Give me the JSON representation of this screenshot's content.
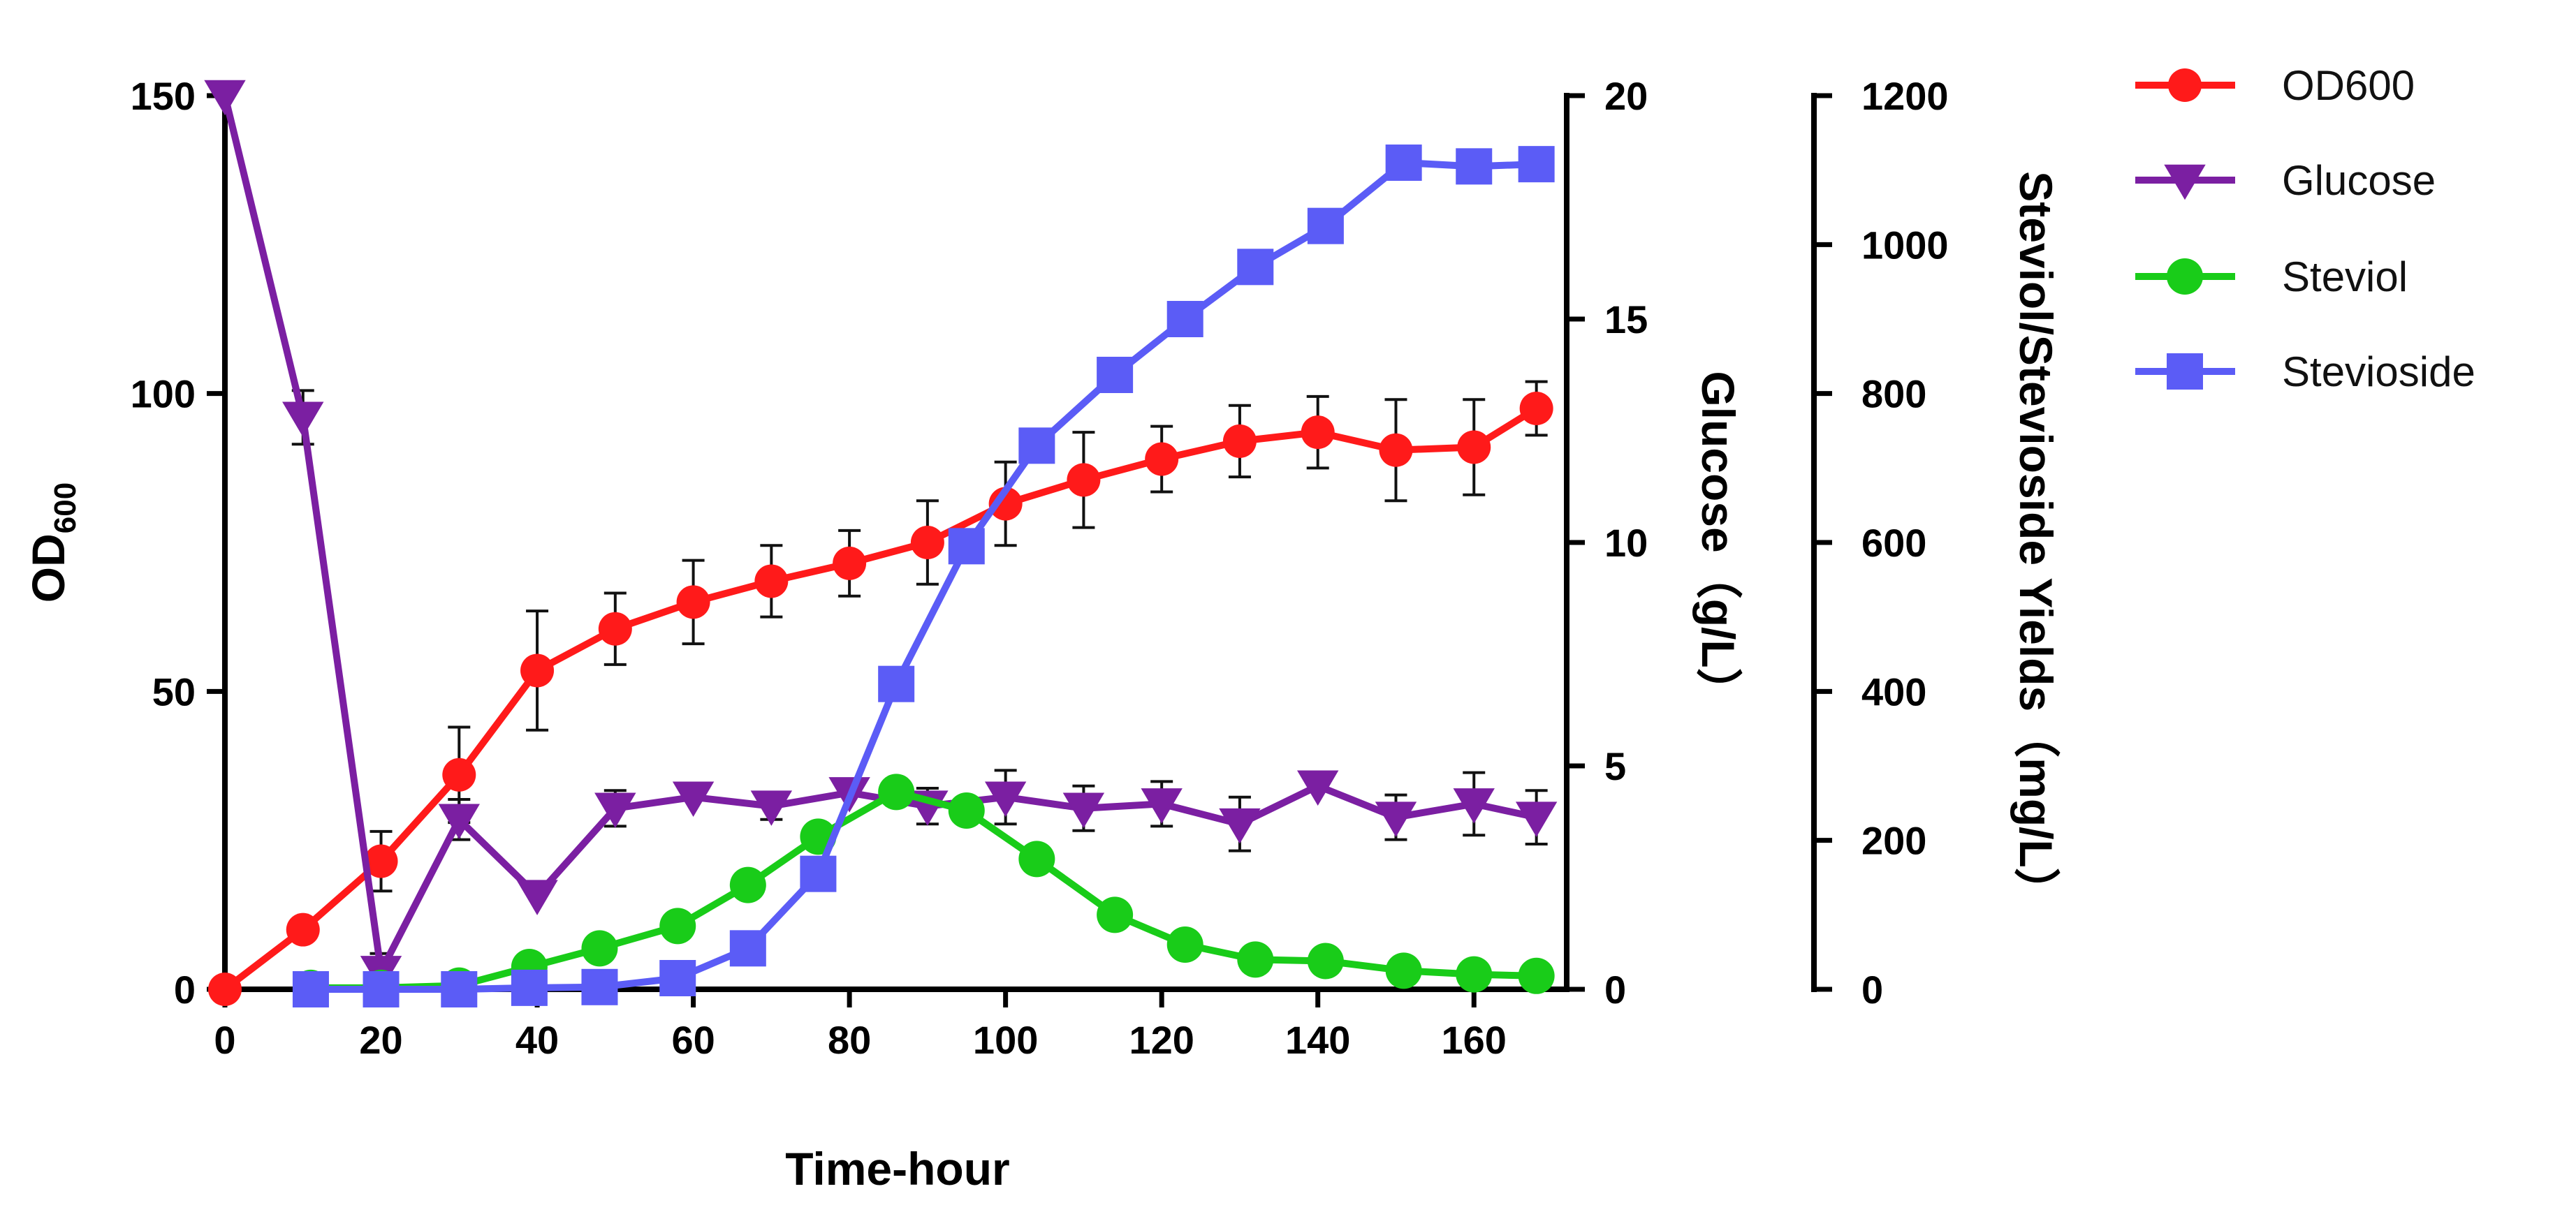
{
  "chart_data": {
    "type": "line",
    "xlabel": "Time-hour",
    "xlim": [
      0,
      170
    ],
    "xticks": [
      0,
      20,
      40,
      60,
      80,
      100,
      120,
      140,
      160
    ],
    "axes": {
      "left": {
        "label_main": "OD",
        "label_sub": "600",
        "ylim": [
          0,
          150
        ],
        "ticks": [
          0,
          50,
          100,
          150
        ]
      },
      "right1": {
        "label": "Glucose（g/L）",
        "ylim": [
          0,
          20
        ],
        "ticks": [
          0,
          5,
          10,
          15,
          20
        ]
      },
      "right2": {
        "label": "Steviol/Stevioside Yields（mg/L）",
        "ylim": [
          0,
          1200
        ],
        "ticks": [
          0,
          200,
          400,
          600,
          800,
          1000,
          1200
        ]
      }
    },
    "series": [
      {
        "name": "OD600",
        "legend_label": "OD600",
        "axis": "left",
        "color": "#ff1a1a",
        "marker": "circle",
        "x": [
          0,
          10,
          20,
          30,
          40,
          50,
          60,
          70,
          80,
          90,
          100,
          110,
          120,
          130,
          140,
          150,
          160,
          168
        ],
        "y": [
          0,
          10,
          21.5,
          36,
          53.5,
          60.5,
          65,
          68.5,
          71.5,
          75,
          81.5,
          85.5,
          89,
          92,
          93.5,
          90.5,
          91,
          97.5
        ],
        "err": [
          0,
          0,
          5,
          8,
          10,
          6,
          7,
          6,
          5.5,
          7,
          7,
          8,
          5.5,
          6,
          6,
          8.5,
          8,
          4.5
        ]
      },
      {
        "name": "Glucose",
        "legend_label": "Glucose",
        "axis": "right1",
        "color": "#7b1fa2",
        "marker": "triangle-down",
        "x": [
          0,
          10,
          20,
          30,
          40,
          50,
          60,
          70,
          80,
          90,
          100,
          110,
          120,
          130,
          140,
          150,
          160,
          168
        ],
        "y": [
          20,
          12.8,
          0.4,
          3.8,
          2.1,
          4.05,
          4.3,
          4.1,
          4.4,
          4.1,
          4.3,
          4.05,
          4.15,
          3.7,
          4.55,
          3.85,
          4.15,
          3.85
        ],
        "err": [
          0,
          0.6,
          0.4,
          0.45,
          0,
          0.4,
          0,
          0.3,
          0,
          0.4,
          0.6,
          0.5,
          0.5,
          0.6,
          0,
          0.5,
          0.7,
          0.6
        ]
      },
      {
        "name": "Steviol",
        "legend_label": " Steviol",
        "axis": "right2",
        "color": "#19cc19",
        "marker": "circle",
        "x": [
          11,
          20,
          30,
          39,
          48,
          58,
          67,
          76,
          86,
          95,
          104,
          114,
          123,
          132,
          141,
          151,
          160,
          168
        ],
        "y": [
          2,
          2,
          5,
          30,
          55,
          85,
          140,
          205,
          265,
          240,
          175,
          100,
          60,
          40,
          38,
          25,
          20,
          18
        ]
      },
      {
        "name": "Stevioside",
        "legend_label": " Stevioside",
        "axis": "right2",
        "color": "#5b5cf6",
        "marker": "square",
        "x": [
          11,
          20,
          30,
          39,
          48,
          58,
          67,
          76,
          86,
          95,
          104,
          114,
          123,
          132,
          141,
          151,
          160,
          168
        ],
        "y": [
          0,
          0,
          0,
          2,
          3,
          15,
          55,
          155,
          410,
          595,
          730,
          825,
          900,
          970,
          1025,
          1110,
          1105,
          1108
        ]
      }
    ]
  }
}
